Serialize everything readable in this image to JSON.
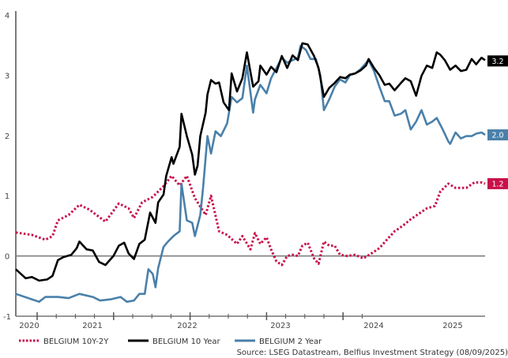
{
  "chart_data": {
    "type": "line",
    "title": "",
    "xlabel": "",
    "ylabel": "",
    "ylim": [
      -1,
      4
    ],
    "xlim": [
      2020.45,
      2025.69
    ],
    "yticks": [
      "-1",
      "0",
      "1",
      "2",
      "3",
      "4"
    ],
    "xticks": [
      "2020",
      "2021",
      "2022",
      "2023",
      "2024",
      "2025"
    ],
    "grid": false,
    "zero_line": true,
    "legend_position": "bottom",
    "source": "Source: LSEG Datastream, Belfius Investment Strategy (08/09/2025)",
    "series": [
      {
        "name": "BELGIUM 10Y-2Y",
        "color": "#c8104a",
        "style": "dotted",
        "end_label": "1.2",
        "points": [
          [
            2020.45,
            0.39
          ],
          [
            2020.63,
            0.35
          ],
          [
            2020.78,
            0.27
          ],
          [
            2020.86,
            0.33
          ],
          [
            2020.92,
            0.59
          ],
          [
            2021.04,
            0.68
          ],
          [
            2021.16,
            0.85
          ],
          [
            2021.27,
            0.77
          ],
          [
            2021.45,
            0.57
          ],
          [
            2021.6,
            0.87
          ],
          [
            2021.71,
            0.79
          ],
          [
            2021.77,
            0.63
          ],
          [
            2021.86,
            0.89
          ],
          [
            2021.98,
            0.98
          ],
          [
            2022.1,
            1.16
          ],
          [
            2022.19,
            1.33
          ],
          [
            2022.28,
            1.17
          ],
          [
            2022.36,
            1.33
          ],
          [
            2022.45,
            0.96
          ],
          [
            2022.57,
            0.68
          ],
          [
            2022.63,
            1.0
          ],
          [
            2022.72,
            0.41
          ],
          [
            2022.81,
            0.35
          ],
          [
            2022.92,
            0.2
          ],
          [
            2022.98,
            0.33
          ],
          [
            2023.07,
            0.11
          ],
          [
            2023.12,
            0.38
          ],
          [
            2023.18,
            0.2
          ],
          [
            2023.25,
            0.31
          ],
          [
            2023.3,
            0.11
          ],
          [
            2023.36,
            -0.09
          ],
          [
            2023.42,
            -0.15
          ],
          [
            2023.48,
            0.0
          ],
          [
            2023.54,
            0.02
          ],
          [
            2023.6,
            0.0
          ],
          [
            2023.65,
            0.17
          ],
          [
            2023.71,
            0.22
          ],
          [
            2023.78,
            -0.04
          ],
          [
            2023.83,
            -0.13
          ],
          [
            2023.89,
            0.24
          ],
          [
            2023.95,
            0.17
          ],
          [
            2024.01,
            0.17
          ],
          [
            2024.07,
            0.02
          ],
          [
            2024.15,
            0.0
          ],
          [
            2024.24,
            0.02
          ],
          [
            2024.33,
            -0.04
          ],
          [
            2024.42,
            0.04
          ],
          [
            2024.51,
            0.13
          ],
          [
            2024.6,
            0.28
          ],
          [
            2024.68,
            0.41
          ],
          [
            2024.77,
            0.5
          ],
          [
            2024.86,
            0.61
          ],
          [
            2024.95,
            0.7
          ],
          [
            2025.04,
            0.79
          ],
          [
            2025.13,
            0.83
          ],
          [
            2025.19,
            1.07
          ],
          [
            2025.28,
            1.2
          ],
          [
            2025.36,
            1.13
          ],
          [
            2025.48,
            1.13
          ],
          [
            2025.57,
            1.22
          ],
          [
            2025.65,
            1.22
          ],
          [
            2025.69,
            1.2
          ]
        ]
      },
      {
        "name": "BELGIUM 10 Year",
        "color": "#000000",
        "style": "solid",
        "end_label": "3.2",
        "points": [
          [
            2020.45,
            -0.22
          ],
          [
            2020.56,
            -0.37
          ],
          [
            2020.63,
            -0.35
          ],
          [
            2020.71,
            -0.41
          ],
          [
            2020.8,
            -0.39
          ],
          [
            2020.86,
            -0.33
          ],
          [
            2020.92,
            -0.07
          ],
          [
            2020.98,
            -0.02
          ],
          [
            2021.07,
            0.02
          ],
          [
            2021.13,
            0.13
          ],
          [
            2021.16,
            0.24
          ],
          [
            2021.24,
            0.11
          ],
          [
            2021.31,
            0.09
          ],
          [
            2021.38,
            -0.1
          ],
          [
            2021.45,
            -0.15
          ],
          [
            2021.54,
            0.0
          ],
          [
            2021.6,
            0.17
          ],
          [
            2021.66,
            0.22
          ],
          [
            2021.71,
            0.04
          ],
          [
            2021.77,
            -0.05
          ],
          [
            2021.83,
            0.2
          ],
          [
            2021.89,
            0.27
          ],
          [
            2021.95,
            0.72
          ],
          [
            2022.01,
            0.55
          ],
          [
            2022.04,
            0.89
          ],
          [
            2022.1,
            1.02
          ],
          [
            2022.13,
            1.33
          ],
          [
            2022.19,
            1.64
          ],
          [
            2022.21,
            1.53
          ],
          [
            2022.28,
            1.81
          ],
          [
            2022.3,
            2.36
          ],
          [
            2022.36,
            1.99
          ],
          [
            2022.42,
            1.68
          ],
          [
            2022.45,
            1.35
          ],
          [
            2022.48,
            1.5
          ],
          [
            2022.51,
            1.99
          ],
          [
            2022.57,
            2.38
          ],
          [
            2022.59,
            2.68
          ],
          [
            2022.63,
            2.92
          ],
          [
            2022.68,
            2.86
          ],
          [
            2022.72,
            2.88
          ],
          [
            2022.77,
            2.55
          ],
          [
            2022.83,
            2.42
          ],
          [
            2022.86,
            3.03
          ],
          [
            2022.92,
            2.73
          ],
          [
            2022.98,
            2.95
          ],
          [
            2023.03,
            3.38
          ],
          [
            2023.1,
            2.81
          ],
          [
            2023.16,
            2.9
          ],
          [
            2023.18,
            3.16
          ],
          [
            2023.25,
            3.01
          ],
          [
            2023.3,
            3.14
          ],
          [
            2023.36,
            3.05
          ],
          [
            2023.42,
            3.32
          ],
          [
            2023.48,
            3.12
          ],
          [
            2023.54,
            3.33
          ],
          [
            2023.6,
            3.25
          ],
          [
            2023.65,
            3.53
          ],
          [
            2023.71,
            3.51
          ],
          [
            2023.78,
            3.32
          ],
          [
            2023.83,
            3.12
          ],
          [
            2023.89,
            2.64
          ],
          [
            2023.95,
            2.79
          ],
          [
            2024.01,
            2.87
          ],
          [
            2024.07,
            2.97
          ],
          [
            2024.13,
            2.95
          ],
          [
            2024.18,
            3.01
          ],
          [
            2024.24,
            3.03
          ],
          [
            2024.3,
            3.08
          ],
          [
            2024.36,
            3.16
          ],
          [
            2024.39,
            3.27
          ],
          [
            2024.45,
            3.12
          ],
          [
            2024.51,
            3.0
          ],
          [
            2024.57,
            2.84
          ],
          [
            2024.62,
            2.86
          ],
          [
            2024.68,
            2.75
          ],
          [
            2024.75,
            2.87
          ],
          [
            2024.8,
            2.95
          ],
          [
            2024.86,
            2.9
          ],
          [
            2024.92,
            2.66
          ],
          [
            2024.98,
            2.99
          ],
          [
            2025.04,
            3.16
          ],
          [
            2025.1,
            3.12
          ],
          [
            2025.15,
            3.38
          ],
          [
            2025.19,
            3.34
          ],
          [
            2025.24,
            3.25
          ],
          [
            2025.3,
            3.09
          ],
          [
            2025.36,
            3.16
          ],
          [
            2025.42,
            3.07
          ],
          [
            2025.48,
            3.09
          ],
          [
            2025.54,
            3.27
          ],
          [
            2025.59,
            3.18
          ],
          [
            2025.65,
            3.29
          ],
          [
            2025.69,
            3.25
          ]
        ]
      },
      {
        "name": "BELGIUM 2 Year",
        "color": "#4a80aa",
        "style": "solid",
        "end_label": "2.0",
        "points": [
          [
            2020.45,
            -0.63
          ],
          [
            2020.63,
            -0.72
          ],
          [
            2020.71,
            -0.76
          ],
          [
            2020.78,
            -0.68
          ],
          [
            2020.92,
            -0.68
          ],
          [
            2021.04,
            -0.7
          ],
          [
            2021.16,
            -0.63
          ],
          [
            2021.31,
            -0.68
          ],
          [
            2021.39,
            -0.74
          ],
          [
            2021.51,
            -0.72
          ],
          [
            2021.62,
            -0.68
          ],
          [
            2021.69,
            -0.76
          ],
          [
            2021.77,
            -0.74
          ],
          [
            2021.83,
            -0.63
          ],
          [
            2021.89,
            -0.63
          ],
          [
            2021.93,
            -0.22
          ],
          [
            2021.98,
            -0.3
          ],
          [
            2022.01,
            -0.52
          ],
          [
            2022.04,
            -0.2
          ],
          [
            2022.1,
            0.15
          ],
          [
            2022.15,
            0.24
          ],
          [
            2022.21,
            0.33
          ],
          [
            2022.28,
            0.41
          ],
          [
            2022.3,
            1.2
          ],
          [
            2022.36,
            0.59
          ],
          [
            2022.42,
            0.55
          ],
          [
            2022.45,
            0.33
          ],
          [
            2022.51,
            0.68
          ],
          [
            2022.54,
            1.11
          ],
          [
            2022.59,
            1.99
          ],
          [
            2022.63,
            1.7
          ],
          [
            2022.68,
            2.07
          ],
          [
            2022.74,
            1.99
          ],
          [
            2022.81,
            2.2
          ],
          [
            2022.86,
            2.64
          ],
          [
            2022.92,
            2.55
          ],
          [
            2022.98,
            2.62
          ],
          [
            2023.03,
            3.16
          ],
          [
            2023.1,
            2.38
          ],
          [
            2023.12,
            2.6
          ],
          [
            2023.18,
            2.84
          ],
          [
            2023.25,
            2.7
          ],
          [
            2023.3,
            2.95
          ],
          [
            2023.36,
            3.12
          ],
          [
            2023.42,
            3.29
          ],
          [
            2023.48,
            3.21
          ],
          [
            2023.54,
            3.25
          ],
          [
            2023.6,
            3.29
          ],
          [
            2023.63,
            3.49
          ],
          [
            2023.69,
            3.42
          ],
          [
            2023.74,
            3.27
          ],
          [
            2023.8,
            3.27
          ],
          [
            2023.85,
            3.0
          ],
          [
            2023.89,
            2.42
          ],
          [
            2023.95,
            2.6
          ],
          [
            2024.01,
            2.81
          ],
          [
            2024.07,
            2.93
          ],
          [
            2024.13,
            2.88
          ],
          [
            2024.18,
            3.0
          ],
          [
            2024.24,
            3.03
          ],
          [
            2024.3,
            3.1
          ],
          [
            2024.39,
            3.25
          ],
          [
            2024.45,
            3.07
          ],
          [
            2024.51,
            2.81
          ],
          [
            2024.57,
            2.57
          ],
          [
            2024.62,
            2.57
          ],
          [
            2024.68,
            2.33
          ],
          [
            2024.75,
            2.36
          ],
          [
            2024.8,
            2.42
          ],
          [
            2024.86,
            2.1
          ],
          [
            2024.92,
            2.23
          ],
          [
            2024.98,
            2.42
          ],
          [
            2025.04,
            2.18
          ],
          [
            2025.1,
            2.23
          ],
          [
            2025.15,
            2.29
          ],
          [
            2025.21,
            2.12
          ],
          [
            2025.28,
            1.9
          ],
          [
            2025.3,
            1.86
          ],
          [
            2025.36,
            2.05
          ],
          [
            2025.42,
            1.95
          ],
          [
            2025.48,
            1.99
          ],
          [
            2025.54,
            1.99
          ],
          [
            2025.59,
            2.03
          ],
          [
            2025.65,
            2.05
          ],
          [
            2025.69,
            2.01
          ]
        ]
      }
    ]
  }
}
